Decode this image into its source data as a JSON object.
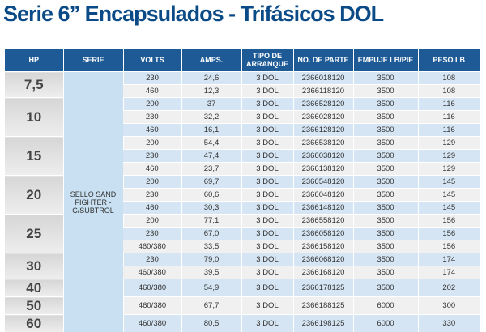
{
  "title": "Serie 6” Encapsulados - Trifásicos DOL",
  "headers": [
    "HP",
    "SERIE",
    "VOLTS",
    "AMPS.",
    "TIPO DE ARRANQUE",
    "NO. DE PARTE",
    "EMPUJE LB/PIE",
    "PESO LB"
  ],
  "serie_label": "SELLO SAND FIGHTER - C/SUBTROL",
  "groups": [
    {
      "hp": "7,5",
      "rows": [
        {
          "volts": "230",
          "amps": "24,6",
          "arranque": "3 DOL",
          "parte": "2366018120",
          "empuje": "3500",
          "peso": "108"
        },
        {
          "volts": "460",
          "amps": "12,3",
          "arranque": "3 DOL",
          "parte": "2366118120",
          "empuje": "3500",
          "peso": "108"
        }
      ]
    },
    {
      "hp": "10",
      "rows": [
        {
          "volts": "200",
          "amps": "37",
          "arranque": "3 DOL",
          "parte": "2366528120",
          "empuje": "3500",
          "peso": "116"
        },
        {
          "volts": "230",
          "amps": "32,2",
          "arranque": "3 DOL",
          "parte": "2366028120",
          "empuje": "3500",
          "peso": "116"
        },
        {
          "volts": "460",
          "amps": "16,1",
          "arranque": "3 DOL",
          "parte": "2366128120",
          "empuje": "3500",
          "peso": "116"
        }
      ]
    },
    {
      "hp": "15",
      "rows": [
        {
          "volts": "200",
          "amps": "54,4",
          "arranque": "3 DOL",
          "parte": "2366538120",
          "empuje": "3500",
          "peso": "129"
        },
        {
          "volts": "230",
          "amps": "47,4",
          "arranque": "3 DOL",
          "parte": "2366038120",
          "empuje": "3500",
          "peso": "129"
        },
        {
          "volts": "460",
          "amps": "23,7",
          "arranque": "3 DOL",
          "parte": "2366138120",
          "empuje": "3500",
          "peso": "129"
        }
      ]
    },
    {
      "hp": "20",
      "rows": [
        {
          "volts": "200",
          "amps": "69,7",
          "arranque": "3 DOL",
          "parte": "2366548120",
          "empuje": "3500",
          "peso": "145"
        },
        {
          "volts": "230",
          "amps": "60,6",
          "arranque": "3 DOL",
          "parte": "2366048120",
          "empuje": "3500",
          "peso": "145"
        },
        {
          "volts": "460",
          "amps": "30,3",
          "arranque": "3 DOL",
          "parte": "2366148120",
          "empuje": "3500",
          "peso": "145"
        }
      ]
    },
    {
      "hp": "25",
      "rows": [
        {
          "volts": "200",
          "amps": "77,1",
          "arranque": "3 DOL",
          "parte": "2366558120",
          "empuje": "3500",
          "peso": "156"
        },
        {
          "volts": "230",
          "amps": "67,0",
          "arranque": "3 DOL",
          "parte": "2366058120",
          "empuje": "3500",
          "peso": "156"
        },
        {
          "volts": "460/380",
          "amps": "33,5",
          "arranque": "3 DOL",
          "parte": "2366158120",
          "empuje": "3500",
          "peso": "156"
        }
      ]
    },
    {
      "hp": "30",
      "rows": [
        {
          "volts": "230",
          "amps": "79,0",
          "arranque": "3 DOL",
          "parte": "2366068120",
          "empuje": "3500",
          "peso": "174"
        },
        {
          "volts": "460/380",
          "amps": "39,5",
          "arranque": "3 DOL",
          "parte": "2366168120",
          "empuje": "3500",
          "peso": "174"
        }
      ]
    },
    {
      "hp": "40",
      "rows": [
        {
          "volts": "460/380",
          "amps": "54,9",
          "arranque": "3 DOL",
          "parte": "2366178125",
          "empuje": "3500",
          "peso": "202"
        }
      ]
    },
    {
      "hp": "50",
      "rows": [
        {
          "volts": "460/380",
          "amps": "67,7",
          "arranque": "3 DOL",
          "parte": "2366188125",
          "empuje": "6000",
          "peso": "300"
        }
      ]
    },
    {
      "hp": "60",
      "rows": [
        {
          "volts": "460/380",
          "amps": "80,5",
          "arranque": "3 DOL",
          "parte": "2366198125",
          "empuje": "6000",
          "peso": "330"
        }
      ]
    }
  ]
}
